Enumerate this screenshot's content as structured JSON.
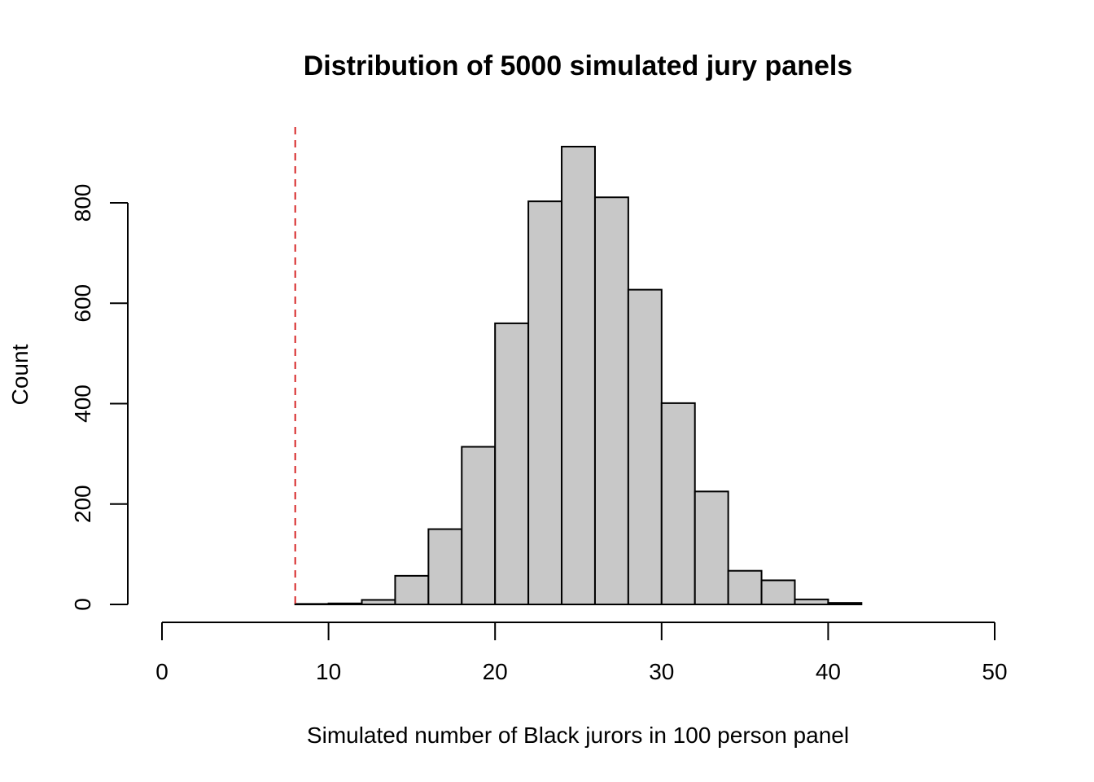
{
  "chart_data": {
    "type": "bar",
    "subtype": "histogram",
    "title": "Distribution of 5000 simulated jury panels",
    "xlabel": "Simulated number of Black jurors in 100 person panel",
    "ylabel": "Count",
    "xlim": [
      0,
      50
    ],
    "ylim": [
      0,
      912
    ],
    "x_ticks": [
      "0",
      "10",
      "20",
      "30",
      "40",
      "50"
    ],
    "y_ticks": [
      "0",
      "200",
      "400",
      "600",
      "800"
    ],
    "bin_width": 2,
    "bins": [
      {
        "start": 8,
        "end": 10,
        "count": 1
      },
      {
        "start": 10,
        "end": 12,
        "count": 2
      },
      {
        "start": 12,
        "end": 14,
        "count": 9
      },
      {
        "start": 14,
        "end": 16,
        "count": 57
      },
      {
        "start": 16,
        "end": 18,
        "count": 150
      },
      {
        "start": 18,
        "end": 20,
        "count": 314
      },
      {
        "start": 20,
        "end": 22,
        "count": 560
      },
      {
        "start": 22,
        "end": 24,
        "count": 803
      },
      {
        "start": 24,
        "end": 26,
        "count": 912
      },
      {
        "start": 26,
        "end": 28,
        "count": 811
      },
      {
        "start": 28,
        "end": 30,
        "count": 627
      },
      {
        "start": 30,
        "end": 32,
        "count": 401
      },
      {
        "start": 32,
        "end": 34,
        "count": 225
      },
      {
        "start": 34,
        "end": 36,
        "count": 67
      },
      {
        "start": 36,
        "end": 38,
        "count": 48
      },
      {
        "start": 38,
        "end": 40,
        "count": 10
      },
      {
        "start": 40,
        "end": 42,
        "count": 3
      }
    ],
    "reference_line": {
      "x": 8,
      "color": "#d62728",
      "style": "dashed"
    },
    "bar_color": "#c8c8c8",
    "grid": false,
    "legend": "none"
  }
}
